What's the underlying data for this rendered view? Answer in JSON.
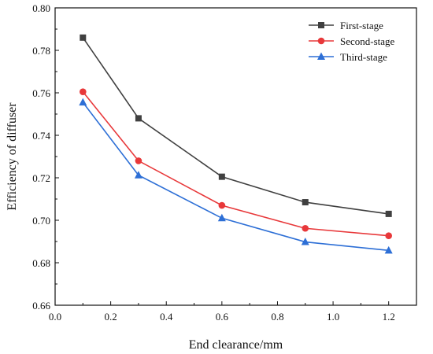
{
  "chart_data": {
    "type": "line",
    "title": "",
    "xlabel": "End clearance/mm",
    "ylabel": "Efficiency of diffuser",
    "xlim": [
      0.0,
      1.3
    ],
    "ylim": [
      0.66,
      0.8
    ],
    "xticks": [
      "0.0",
      "0.2",
      "0.4",
      "0.6",
      "0.8",
      "1.0",
      "1.2"
    ],
    "yticks": [
      "0.66",
      "0.68",
      "0.70",
      "0.72",
      "0.74",
      "0.76",
      "0.78",
      "0.80"
    ],
    "grid": false,
    "legend_position": "top-right",
    "x": [
      0.1,
      0.3,
      0.6,
      0.9,
      1.2
    ],
    "series": [
      {
        "name": "First-stage",
        "color": "#404040",
        "marker": "square",
        "values": [
          0.786,
          0.748,
          0.7205,
          0.7085,
          0.703
        ]
      },
      {
        "name": "Second-stage",
        "color": "#e8383a",
        "marker": "circle",
        "values": [
          0.7605,
          0.728,
          0.707,
          0.6962,
          0.6927
        ]
      },
      {
        "name": "Third-stage",
        "color": "#2d6fd6",
        "marker": "triangle",
        "values": [
          0.7555,
          0.7212,
          0.701,
          0.6898,
          0.6858
        ]
      }
    ]
  }
}
